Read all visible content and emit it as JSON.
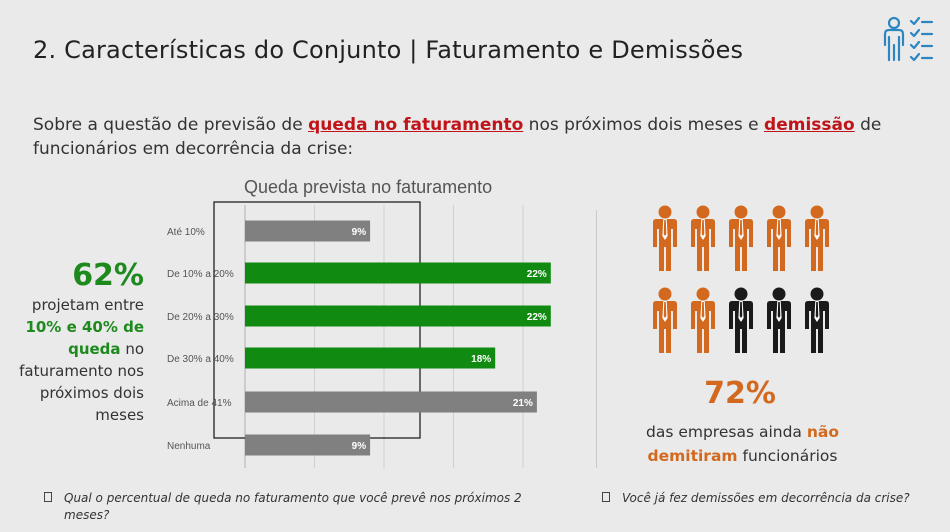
{
  "header": {
    "title": "2. Características do Conjunto | Faturamento e Demissões",
    "icon": "checklist-person-icon",
    "icon_color": "#2e86c1"
  },
  "intro": {
    "part1": "Sobre a questão de previsão de ",
    "highlight1": "queda no faturamento",
    "part2": " nos próximos dois meses e ",
    "highlight2": "demissão",
    "part3": " de funcionários em decorrência da crise:"
  },
  "chart_data": {
    "type": "bar",
    "orientation": "horizontal",
    "title": "Queda prevista no faturamento",
    "categories": [
      "Até 10%",
      "De 10% a 20%",
      "De 20% a 30%",
      "De 30% a 40%",
      "Acima de 41%",
      "Nenhuma"
    ],
    "values": [
      9,
      22,
      22,
      18,
      21,
      9
    ],
    "data_labels": [
      "9%",
      "22%",
      "22%",
      "18%",
      "21%",
      "9%"
    ],
    "colors": [
      "#808080",
      "#108a10",
      "#108a10",
      "#108a10",
      "#808080",
      "#808080"
    ],
    "xlim": [
      0,
      25
    ],
    "grid": true,
    "highlight_box_categories": [
      "Até 10%",
      "Acima de 41%"
    ]
  },
  "left_stat": {
    "percent": "62%",
    "text1": "projetam entre ",
    "green1": "10% e 40% de queda",
    "text2": " no faturamento nos próximos dois meses"
  },
  "pictogram": {
    "total": 10,
    "orange_count": 7,
    "orange_color": "#d2691e",
    "black_color": "#1a1a1a"
  },
  "right_stat": {
    "percent": "72%",
    "text1": "das empresas ainda ",
    "orange1": "não demitiram",
    "text2": " funcionários"
  },
  "footnotes": {
    "left": "Qual o percentual de queda no faturamento que você prevê nos próximos 2 meses?",
    "right": "Você já fez demissões em decorrência da crise?"
  }
}
